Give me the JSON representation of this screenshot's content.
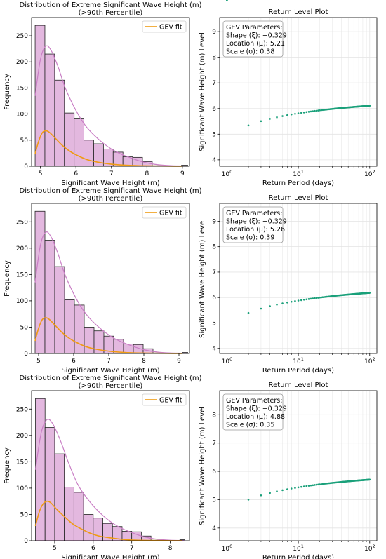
{
  "chart_data": [
    {
      "type": "bar",
      "panel": "histogram",
      "title_lines": [
        "Distribution of Extreme Significant Wave Height (m)",
        "(>90th Percentile)"
      ],
      "xlabel": "Significant Wave Height (m)",
      "ylabel": "Frequency",
      "xlim": [
        4.75,
        9.2
      ],
      "ylim": [
        0,
        285
      ],
      "xticks": [
        5,
        6,
        7,
        8,
        9
      ],
      "yticks": [
        0,
        50,
        100,
        150,
        200,
        250
      ],
      "bin_edges": [
        4.85,
        5.125,
        5.4,
        5.675,
        5.95,
        6.225,
        6.5,
        6.775,
        7.05,
        7.325,
        7.6,
        7.875,
        8.15,
        8.425,
        8.7,
        8.975,
        9.15
      ],
      "counts": [
        270,
        215,
        165,
        102,
        92,
        50,
        43,
        33,
        27,
        18,
        17,
        9,
        1,
        0,
        0,
        2
      ],
      "kde": {
        "x": [
          4.85,
          5.0,
          5.15,
          5.3,
          5.5,
          5.7,
          6.0,
          6.3,
          6.7,
          7.1,
          7.5,
          7.9,
          8.3,
          8.7,
          9.1
        ],
        "y": [
          135,
          205,
          230,
          222,
          190,
          150,
          107,
          75,
          48,
          29,
          17,
          8,
          3,
          1,
          0.5
        ]
      },
      "gev": {
        "x": [
          4.85,
          4.95,
          5.05,
          5.15,
          5.25,
          5.4,
          5.6,
          5.8,
          6.0,
          6.3,
          6.6,
          7.0,
          7.4,
          7.8,
          8.2,
          8.6,
          9.0
        ],
        "y": [
          24,
          48,
          64,
          68,
          65,
          55,
          41,
          30,
          22,
          13,
          8,
          4,
          2,
          1,
          0.5,
          0.2,
          0.1
        ]
      },
      "legend": {
        "label": "GEV fit",
        "position": "upper right"
      }
    },
    {
      "type": "line",
      "panel": "return-level",
      "title": "Return Level Plot",
      "xlabel": "Return Period (days)",
      "ylabel": "Significant Wave Height (m) Level",
      "xscale": "log",
      "xlim": [
        0.79,
        126
      ],
      "ylim": [
        3.75,
        9.55
      ],
      "xticks": [
        1,
        10,
        100
      ],
      "yticks": [
        4,
        5,
        6,
        7,
        8,
        9
      ],
      "grid": true,
      "gev_params": {
        "xi": -0.329,
        "mu": 5.21,
        "sigma": 0.38
      },
      "annotation": {
        "header": "GEV Parameters:",
        "shape": "Shape (ξ): −0.329",
        "location": "Location (μ): 5.21",
        "scale": "Scale (σ): 0.38"
      }
    },
    {
      "type": "bar",
      "panel": "histogram",
      "title_lines": [
        "Distribution of Extreme Significant Wave Height (m)",
        "(>90th Percentile)"
      ],
      "xlabel": "Significant Wave Height (m)",
      "ylabel": "Frequency",
      "xlim": [
        4.8,
        9.3
      ],
      "ylim": [
        0,
        285
      ],
      "xticks": [
        5,
        6,
        7,
        8,
        9
      ],
      "yticks": [
        0,
        50,
        100,
        150,
        200,
        250
      ],
      "bin_edges": [
        4.9,
        5.18,
        5.46,
        5.74,
        6.02,
        6.3,
        6.58,
        6.86,
        7.14,
        7.42,
        7.7,
        7.98,
        8.26,
        8.54,
        8.82,
        9.1,
        9.25
      ],
      "counts": [
        270,
        215,
        165,
        102,
        92,
        50,
        43,
        33,
        27,
        18,
        17,
        9,
        1,
        0,
        0,
        2
      ],
      "kde": {
        "x": [
          4.9,
          5.05,
          5.2,
          5.35,
          5.55,
          5.75,
          6.05,
          6.35,
          6.75,
          7.15,
          7.55,
          7.95,
          8.35,
          8.75,
          9.2
        ],
        "y": [
          135,
          205,
          230,
          222,
          190,
          150,
          107,
          75,
          48,
          29,
          17,
          8,
          3,
          1,
          0.5
        ]
      },
      "gev": {
        "x": [
          4.9,
          5.0,
          5.1,
          5.2,
          5.3,
          5.45,
          5.65,
          5.85,
          6.05,
          6.35,
          6.65,
          7.05,
          7.45,
          7.85,
          8.25,
          8.65,
          9.1
        ],
        "y": [
          24,
          48,
          64,
          68,
          65,
          55,
          41,
          30,
          22,
          13,
          8,
          4,
          2,
          1,
          0.5,
          0.2,
          0.1
        ]
      },
      "legend": {
        "label": "GEV fit",
        "position": "upper right"
      }
    },
    {
      "type": "line",
      "panel": "return-level",
      "title": "Return Level Plot",
      "xlabel": "Return Period (days)",
      "ylabel": "Significant Wave Height (m) Level",
      "xscale": "log",
      "xlim": [
        0.79,
        126
      ],
      "ylim": [
        3.8,
        9.7
      ],
      "xticks": [
        1,
        10,
        100
      ],
      "yticks": [
        4,
        5,
        6,
        7,
        8,
        9
      ],
      "grid": true,
      "gev_params": {
        "xi": -0.329,
        "mu": 5.26,
        "sigma": 0.39
      },
      "annotation": {
        "header": "GEV Parameters:",
        "shape": "Shape (ξ): −0.329",
        "location": "Location (μ): 5.26",
        "scale": "Scale (σ): 0.39"
      }
    },
    {
      "type": "bar",
      "panel": "histogram",
      "title_lines": [
        "Distribution of Extreme Significant Wave Height (m)",
        "(>90th Percentile)"
      ],
      "xlabel": "Significant Wave Height (m)",
      "ylabel": "Frequency",
      "xlim": [
        4.4,
        8.5
      ],
      "ylim": [
        0,
        285
      ],
      "xticks": [
        5,
        6,
        7,
        8
      ],
      "yticks": [
        0,
        50,
        100,
        150,
        200,
        250
      ],
      "bin_edges": [
        4.5,
        4.75,
        5.0,
        5.25,
        5.5,
        5.75,
        6.0,
        6.25,
        6.5,
        6.75,
        7.0,
        7.25,
        7.5,
        7.75,
        8.0,
        8.25,
        8.38
      ],
      "counts": [
        270,
        215,
        165,
        102,
        92,
        50,
        43,
        33,
        27,
        18,
        17,
        9,
        1,
        0,
        0,
        2
      ],
      "kde": {
        "x": [
          4.5,
          4.65,
          4.8,
          4.95,
          5.15,
          5.35,
          5.6,
          5.9,
          6.25,
          6.6,
          6.95,
          7.3,
          7.65,
          8.0,
          8.35
        ],
        "y": [
          135,
          205,
          230,
          222,
          190,
          150,
          107,
          75,
          48,
          29,
          17,
          8,
          3,
          1,
          0.5
        ]
      },
      "gev": {
        "x": [
          4.5,
          4.6,
          4.7,
          4.8,
          4.9,
          5.05,
          5.25,
          5.45,
          5.65,
          5.9,
          6.15,
          6.5,
          6.85,
          7.2,
          7.55,
          7.9,
          8.3
        ],
        "y": [
          28,
          55,
          70,
          75,
          72,
          60,
          46,
          33,
          24,
          15,
          9,
          5,
          2,
          1,
          0.5,
          0.2,
          0.1
        ]
      },
      "legend": {
        "label": "GEV fit",
        "position": "upper right"
      }
    },
    {
      "type": "line",
      "panel": "return-level",
      "title": "Return Level Plot",
      "xlabel": "Return Period (days)",
      "ylabel": "Significant Wave Height (m) Level",
      "xscale": "log",
      "xlim": [
        0.79,
        126
      ],
      "ylim": [
        3.55,
        8.85
      ],
      "xticks": [
        1,
        10,
        100
      ],
      "yticks": [
        4,
        5,
        6,
        7,
        8
      ],
      "grid": true,
      "gev_params": {
        "xi": -0.329,
        "mu": 4.88,
        "sigma": 0.35
      },
      "annotation": {
        "header": "GEV Parameters:",
        "shape": "Shape (ξ): −0.329",
        "location": "Location (μ): 4.88",
        "scale": "Scale (σ): 0.35"
      }
    }
  ],
  "colors": {
    "bar_fill": "#e3b8df",
    "bar_edge": "#222222",
    "kde": "#c97ec5",
    "gev": "#ef9b12",
    "return_line": "#1aa07a",
    "grid": "#e4e4e4"
  }
}
